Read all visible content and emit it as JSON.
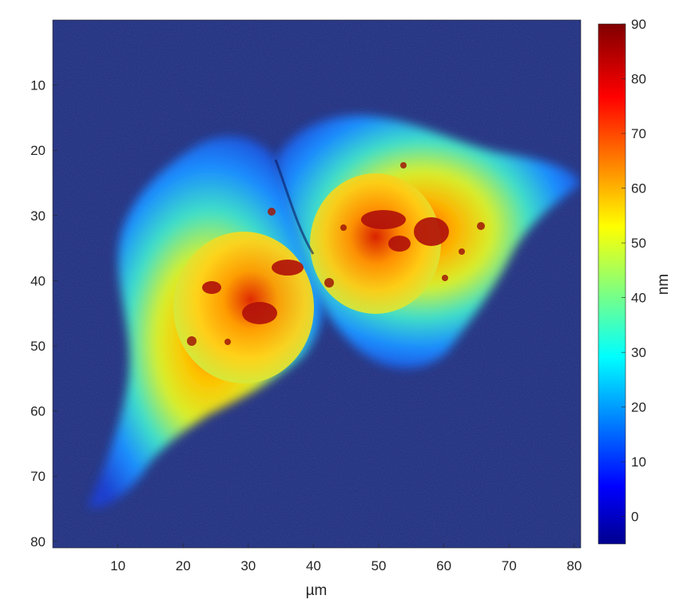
{
  "image": {
    "description_free": true,
    "x_axis": {
      "label": "µm",
      "range": [
        0,
        81
      ],
      "ticks": [
        10,
        20,
        30,
        40,
        50,
        60,
        70,
        80
      ]
    },
    "y_axis": {
      "label": "",
      "range": [
        0,
        81
      ],
      "reversed": true,
      "ticks": [
        10,
        20,
        30,
        40,
        50,
        60,
        70,
        80
      ]
    },
    "colorbar": {
      "label": "nm",
      "range": [
        -5,
        90
      ],
      "ticks": [
        0,
        10,
        20,
        30,
        40,
        50,
        60,
        70,
        80,
        90
      ],
      "colormap": "jet",
      "colors": [
        "#00008f",
        "#0000ff",
        "#00ffff",
        "#ffff00",
        "#ff0000",
        "#800000"
      ]
    },
    "background_color": "#1b2a7a"
  }
}
